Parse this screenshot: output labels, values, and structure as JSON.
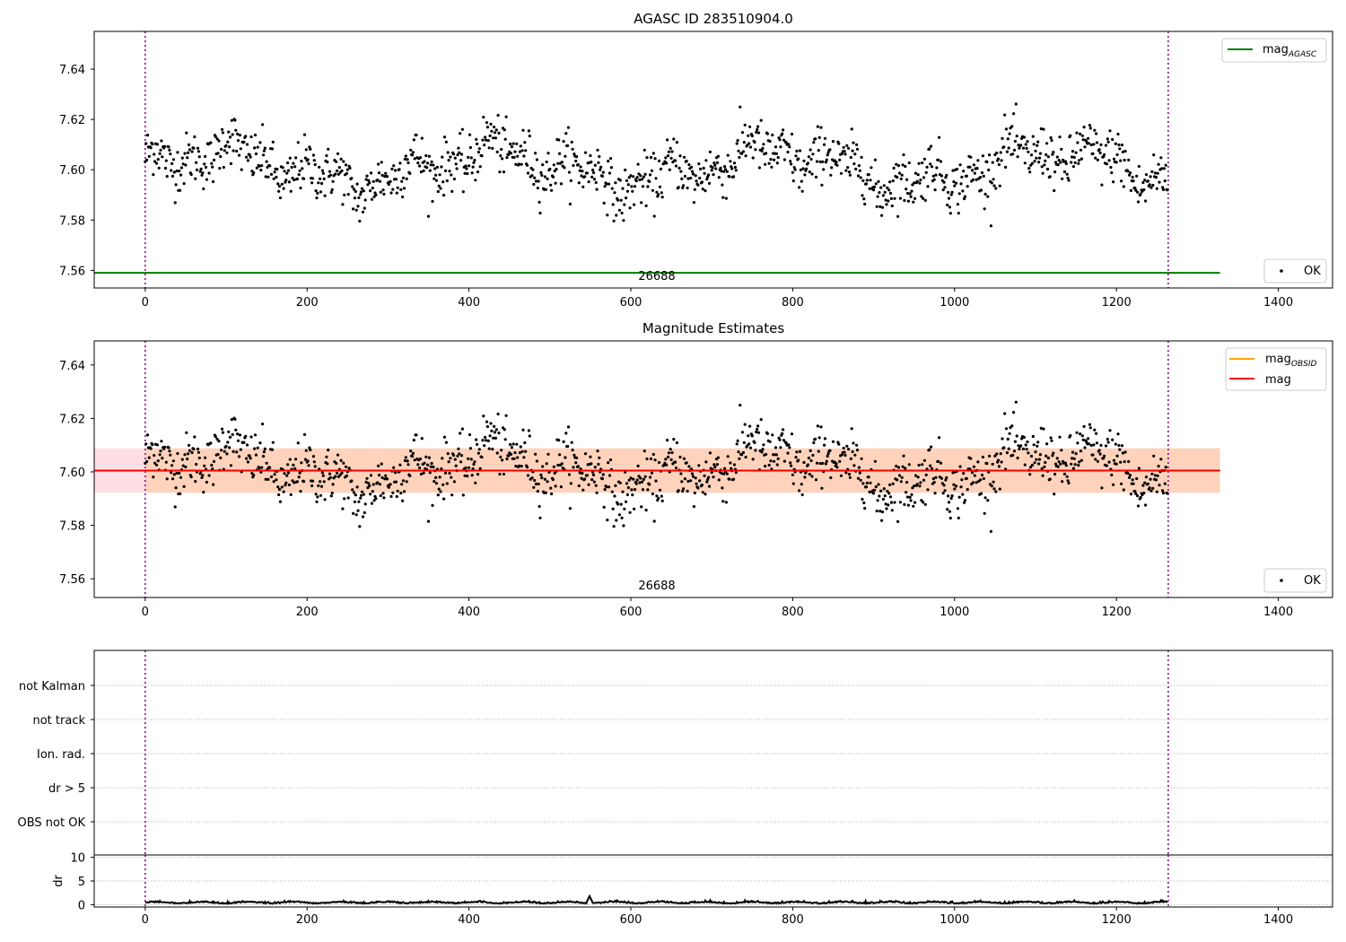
{
  "chart_data": [
    {
      "type": "scatter",
      "title": "AGASC ID 283510904.0",
      "xlim": [
        -63,
        1467
      ],
      "ylim": [
        7.553,
        7.655
      ],
      "xticks": [
        0,
        200,
        400,
        600,
        800,
        1000,
        1200,
        1400
      ],
      "yticks": [
        7.56,
        7.58,
        7.6,
        7.62,
        7.64
      ],
      "ytick_labels": [
        "7.56",
        "7.58",
        "7.60",
        "7.62",
        "7.64"
      ],
      "obsid_label": "26688",
      "obs_boundaries": [
        0,
        1264
      ],
      "mag_agasc": 7.559,
      "line_x_range": [
        0,
        1328
      ],
      "series": [
        {
          "name": "OK",
          "n_points": 1264,
          "mean": 7.601,
          "noise": 0.0095
        }
      ],
      "legend_upper": [
        {
          "label": "mag",
          "subscript": "AGASC",
          "color": "#008000"
        }
      ],
      "legend_lower": [
        {
          "label": "OK",
          "marker": "dot"
        }
      ],
      "legend_upper_loc": "upper right",
      "legend_lower_loc": "lower right"
    },
    {
      "type": "scatter",
      "title": "Magnitude Estimates",
      "xlim": [
        -63,
        1467
      ],
      "ylim": [
        7.553,
        7.649
      ],
      "xticks": [
        0,
        200,
        400,
        600,
        800,
        1000,
        1200,
        1400
      ],
      "yticks": [
        7.56,
        7.58,
        7.6,
        7.62,
        7.64
      ],
      "ytick_labels": [
        "7.56",
        "7.58",
        "7.60",
        "7.62",
        "7.64"
      ],
      "obsid_label": "26688",
      "obs_boundaries": [
        0,
        1264
      ],
      "mag_mean": 7.6005,
      "band_pink": [
        7.5922,
        7.6088
      ],
      "band_orange": [
        7.5922,
        7.6088
      ],
      "line_x_range": [
        0,
        1328
      ],
      "series": [
        {
          "name": "OK",
          "n_points": 1264,
          "mean": 7.601,
          "noise": 0.0095
        }
      ],
      "legend_upper": [
        {
          "label": "mag",
          "subscript": "OBSID",
          "color": "#ffa500"
        },
        {
          "label": "mag",
          "subscript": "",
          "color": "#ff0000"
        }
      ],
      "legend_lower": [
        {
          "label": "OK",
          "marker": "dot"
        }
      ],
      "legend_upper_loc": "upper right",
      "legend_lower_loc": "lower right"
    },
    {
      "type": "scatter",
      "title": "",
      "xlim": [
        -63,
        1467
      ],
      "categories": [
        "not Kalman",
        "not track",
        "Ion. rad.",
        "dr > 5",
        "OBS not OK"
      ],
      "obs_boundaries": [
        0,
        1264
      ],
      "flag_counts": [
        0,
        0,
        0,
        0,
        0
      ]
    },
    {
      "type": "line",
      "title": "",
      "ylabel": "dr",
      "xlim": [
        -63,
        1467
      ],
      "ylim": [
        -0.5,
        10.5
      ],
      "xticks": [
        0,
        200,
        400,
        600,
        800,
        1000,
        1200,
        1400
      ],
      "yticks": [
        0,
        5,
        10
      ],
      "ytick_labels": [
        "0",
        "5",
        "10"
      ],
      "obs_boundaries": [
        0,
        1264
      ],
      "dr_mean": 0.35,
      "dr_peak": {
        "x": 549,
        "y": 1.8
      }
    }
  ],
  "colors": {
    "points": "#000000",
    "agasc_line": "#008000",
    "obsid_line": "#ffa500",
    "mag_line": "#ff0000",
    "band_pink": "#ffc0cb",
    "band_orange": "#ffd0b0",
    "boundary": "#800080",
    "grid": "#b0b0b0"
  }
}
